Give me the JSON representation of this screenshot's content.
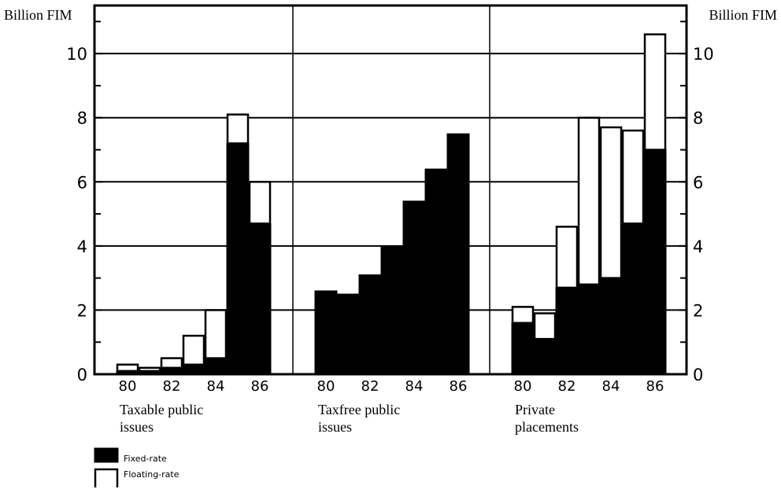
{
  "chart_data": {
    "type": "bar",
    "stacked": true,
    "unit_label_left": "Billion FIM",
    "unit_label_right": "Billion FIM",
    "ylim": [
      0,
      11.5
    ],
    "y_ticks": [
      "0",
      "2",
      "4",
      "6",
      "8",
      "10"
    ],
    "grid": "horizontal lines at 2, 4, 6, 8, 10",
    "x_tick_labels": [
      "80",
      "82",
      "84",
      "86"
    ],
    "legend_position": "bottom-left",
    "legend": [
      {
        "name": "Fixed-rate",
        "color": "#000000"
      },
      {
        "name": "Floating-rate",
        "color": "#ffffff"
      }
    ],
    "panels": [
      {
        "label_lines": [
          "Taxable public",
          "issues"
        ],
        "years": [
          "80",
          "81",
          "82",
          "83",
          "84",
          "85",
          "86"
        ],
        "fixed_rate": [
          0.1,
          0.1,
          0.2,
          0.3,
          0.5,
          7.2,
          4.7
        ],
        "floating_rate": [
          0.2,
          0.1,
          0.3,
          0.9,
          1.5,
          0.9,
          1.3
        ]
      },
      {
        "label_lines": [
          "Taxfree public",
          "issues"
        ],
        "years": [
          "80",
          "81",
          "82",
          "83",
          "84",
          "85",
          "86"
        ],
        "fixed_rate": [
          2.6,
          2.5,
          3.1,
          4.0,
          5.4,
          6.4,
          7.5
        ],
        "floating_rate": [
          0,
          0,
          0,
          0,
          0,
          0,
          0
        ]
      },
      {
        "label_lines": [
          "Private",
          "placements"
        ],
        "years": [
          "80",
          "81",
          "82",
          "83",
          "84",
          "85",
          "86"
        ],
        "fixed_rate": [
          1.6,
          1.1,
          2.7,
          2.8,
          3.0,
          4.7,
          7.0
        ],
        "floating_rate": [
          0.5,
          0.8,
          1.9,
          5.2,
          4.7,
          2.9,
          3.6
        ]
      }
    ]
  }
}
